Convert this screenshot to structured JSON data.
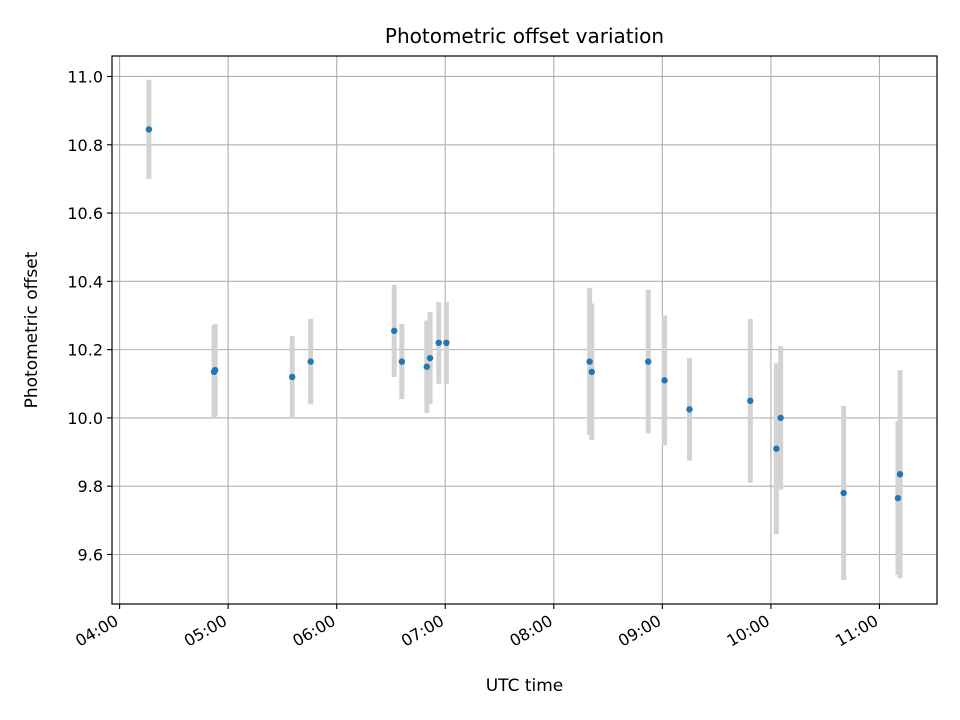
{
  "chart_data": {
    "type": "scatter",
    "title": "Photometric offset variation",
    "xlabel": "UTC time",
    "ylabel": "Photometric offset",
    "x_unit": "hours",
    "xlim": [
      3.93,
      11.53
    ],
    "ylim": [
      9.455,
      11.06
    ],
    "x_ticks": [
      {
        "value": 4,
        "label": "04:00"
      },
      {
        "value": 5,
        "label": "05:00"
      },
      {
        "value": 6,
        "label": "06:00"
      },
      {
        "value": 7,
        "label": "07:00"
      },
      {
        "value": 8,
        "label": "08:00"
      },
      {
        "value": 9,
        "label": "09:00"
      },
      {
        "value": 10,
        "label": "10:00"
      },
      {
        "value": 11,
        "label": "11:00"
      }
    ],
    "y_ticks": [
      {
        "value": 9.6,
        "label": "9.6"
      },
      {
        "value": 9.8,
        "label": "9.8"
      },
      {
        "value": 10.0,
        "label": "10.0"
      },
      {
        "value": 10.2,
        "label": "10.2"
      },
      {
        "value": 10.4,
        "label": "10.4"
      },
      {
        "value": 10.6,
        "label": "10.6"
      },
      {
        "value": 10.8,
        "label": "10.8"
      },
      {
        "value": 11.0,
        "label": "11.0"
      }
    ],
    "grid": true,
    "marker_color": "#1f77b4",
    "errorbar_color": "#d3d3d3",
    "points": [
      {
        "x": 4.27,
        "y": 10.845,
        "err": 0.145
      },
      {
        "x": 4.87,
        "y": 10.135,
        "err": 0.135
      },
      {
        "x": 4.88,
        "y": 10.14,
        "err": 0.135
      },
      {
        "x": 5.59,
        "y": 10.12,
        "err": 0.12
      },
      {
        "x": 5.76,
        "y": 10.165,
        "err": 0.125
      },
      {
        "x": 6.53,
        "y": 10.255,
        "err": 0.135
      },
      {
        "x": 6.6,
        "y": 10.165,
        "err": 0.11
      },
      {
        "x": 6.83,
        "y": 10.15,
        "err": 0.135
      },
      {
        "x": 6.86,
        "y": 10.175,
        "err": 0.135
      },
      {
        "x": 6.94,
        "y": 10.22,
        "err": 0.12
      },
      {
        "x": 7.01,
        "y": 10.22,
        "err": 0.12
      },
      {
        "x": 8.33,
        "y": 10.165,
        "err": 0.215
      },
      {
        "x": 8.35,
        "y": 10.135,
        "err": 0.2
      },
      {
        "x": 8.87,
        "y": 10.165,
        "err": 0.21
      },
      {
        "x": 9.02,
        "y": 10.11,
        "err": 0.19
      },
      {
        "x": 9.25,
        "y": 10.025,
        "err": 0.15
      },
      {
        "x": 9.81,
        "y": 10.05,
        "err": 0.24
      },
      {
        "x": 10.05,
        "y": 9.91,
        "err": 0.25
      },
      {
        "x": 10.09,
        "y": 10.0,
        "err": 0.21
      },
      {
        "x": 10.67,
        "y": 9.78,
        "err": 0.255
      },
      {
        "x": 11.17,
        "y": 9.765,
        "err": 0.225
      },
      {
        "x": 11.19,
        "y": 9.835,
        "err": 0.305
      }
    ]
  }
}
